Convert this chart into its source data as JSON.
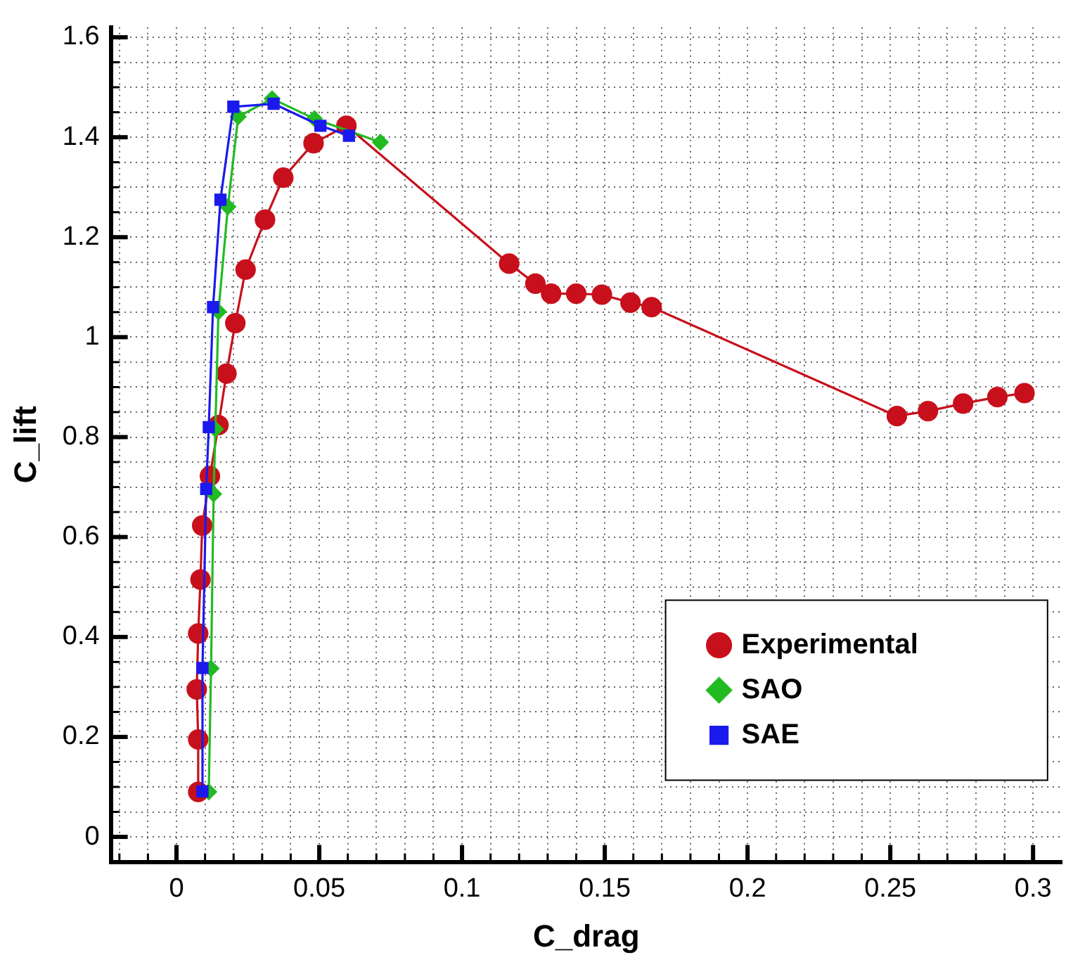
{
  "chart_data": {
    "type": "line",
    "xlabel": "C_drag",
    "ylabel": "C_lift",
    "grid": true,
    "legend": "bottom right",
    "line_style": "solid",
    "xlim": [
      -0.023,
      0.31
    ],
    "ylim": [
      -0.05,
      1.62
    ],
    "xticks": [
      {
        "value": -0.02,
        "label": null
      },
      {
        "value": -0.01,
        "label": null
      },
      0,
      {
        "value": 0.01,
        "label": null
      },
      {
        "value": 0.02,
        "label": null
      },
      {
        "value": 0.03,
        "label": null
      },
      {
        "value": 0.04,
        "label": null
      },
      0.05,
      {
        "value": 0.06,
        "label": null
      },
      {
        "value": 0.07,
        "label": null
      },
      {
        "value": 0.08,
        "label": null
      },
      {
        "value": 0.09,
        "label": null
      },
      0.1,
      {
        "value": 0.11,
        "label": null
      },
      {
        "value": 0.12,
        "label": null
      },
      {
        "value": 0.13,
        "label": null
      },
      {
        "value": 0.14,
        "label": null
      },
      0.15,
      {
        "value": 0.16,
        "label": null
      },
      {
        "value": 0.17,
        "label": null
      },
      {
        "value": 0.18,
        "label": null
      },
      {
        "value": 0.19,
        "label": null
      },
      0.2,
      {
        "value": 0.21,
        "label": null
      },
      {
        "value": 0.22,
        "label": null
      },
      {
        "value": 0.23,
        "label": null
      },
      {
        "value": 0.24,
        "label": null
      },
      0.25,
      {
        "value": 0.26,
        "label": null
      },
      {
        "value": 0.27,
        "label": null
      },
      {
        "value": 0.28,
        "label": null
      },
      {
        "value": 0.29,
        "label": null
      },
      0.3
    ],
    "yticks": [
      0,
      {
        "value": 0.05,
        "label": null
      },
      {
        "value": 0.1,
        "label": null
      },
      {
        "value": 0.15,
        "label": null
      },
      0.2,
      {
        "value": 0.25,
        "label": null
      },
      {
        "value": 0.3,
        "label": null
      },
      {
        "value": 0.35,
        "label": null
      },
      0.4,
      {
        "value": 0.45,
        "label": null
      },
      {
        "value": 0.5,
        "label": null
      },
      {
        "value": 0.55,
        "label": null
      },
      0.6,
      {
        "value": 0.65,
        "label": null
      },
      {
        "value": 0.7,
        "label": null
      },
      {
        "value": 0.75,
        "label": null
      },
      0.8,
      {
        "value": 0.85,
        "label": null
      },
      {
        "value": 0.9,
        "label": null
      },
      {
        "value": 0.95,
        "label": null
      },
      1,
      {
        "value": 1.05,
        "label": null
      },
      {
        "value": 1.1,
        "label": null
      },
      {
        "value": 1.15,
        "label": null
      },
      1.2,
      {
        "value": 1.25,
        "label": null
      },
      {
        "value": 1.3,
        "label": null
      },
      {
        "value": 1.35,
        "label": null
      },
      1.4,
      {
        "value": 1.45,
        "label": null
      },
      {
        "value": 1.5,
        "label": null
      },
      {
        "value": 1.55,
        "label": null
      },
      1.6
    ],
    "series": [
      {
        "name": "Experimental",
        "color": "#c8101c",
        "marker": "circle",
        "x": [
          0.0076,
          0.0076,
          0.0071,
          0.0076,
          0.0084,
          0.009,
          0.0117,
          0.0147,
          0.0175,
          0.0206,
          0.0242,
          0.031,
          0.0374,
          0.048,
          0.0595,
          0.1165,
          0.1257,
          0.1312,
          0.14,
          0.149,
          0.159,
          0.1664,
          0.2523,
          0.2632,
          0.2755,
          0.2875,
          0.297
        ],
        "values": [
          0.09,
          0.195,
          0.295,
          0.407,
          0.515,
          0.623,
          0.722,
          0.824,
          0.927,
          1.028,
          1.135,
          1.235,
          1.319,
          1.388,
          1.423,
          1.147,
          1.107,
          1.087,
          1.087,
          1.085,
          1.069,
          1.06,
          0.842,
          0.852,
          0.867,
          0.88,
          0.888
        ]
      },
      {
        "name": "SAO",
        "color": "#22bb22",
        "marker": "diamond",
        "x": [
          0.0113,
          0.0121,
          0.013,
          0.0136,
          0.0147,
          0.018,
          0.0216,
          0.0335,
          0.0483,
          0.0714
        ],
        "values": [
          0.09,
          0.337,
          0.686,
          0.816,
          1.051,
          1.261,
          1.441,
          1.477,
          1.437,
          1.39
        ]
      },
      {
        "name": "SAE",
        "color": "#1a1aee",
        "marker": "square",
        "x": [
          0.0091,
          0.0091,
          0.0104,
          0.0113,
          0.0128,
          0.0154,
          0.0199,
          0.034,
          0.0504,
          0.0604
        ],
        "values": [
          0.091,
          0.338,
          0.696,
          0.82,
          1.06,
          1.275,
          1.461,
          1.467,
          1.423,
          1.403
        ]
      }
    ]
  }
}
